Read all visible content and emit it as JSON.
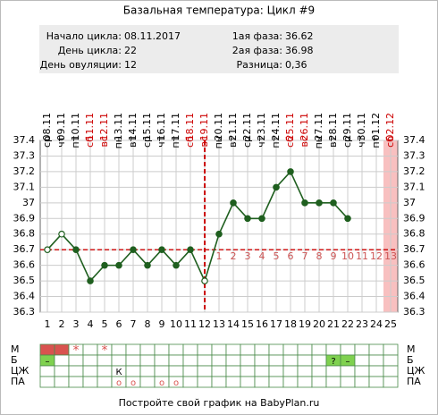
{
  "chart_data": {
    "type": "line",
    "title": "Базальная температура: Цикл #9",
    "info": {
      "left": [
        {
          "label": "Начало цикла:",
          "value": "08.11.2017"
        },
        {
          "label": "День цикла:",
          "value": "22"
        },
        {
          "label": "День овуляции:",
          "value": "12"
        }
      ],
      "right": [
        {
          "label": "1ая фаза:",
          "value": "36.62"
        },
        {
          "label": "2ая фаза:",
          "value": "36.98"
        },
        {
          "label": "Разница:",
          "value": "0,36"
        }
      ]
    },
    "x": [
      1,
      2,
      3,
      4,
      5,
      6,
      7,
      8,
      9,
      10,
      11,
      12,
      13,
      14,
      15,
      16,
      17,
      18,
      19,
      20,
      21,
      22,
      23,
      24,
      25
    ],
    "xlim": [
      0.5,
      25.5
    ],
    "weekdays": [
      "ср",
      "чт",
      "пт",
      "сб",
      "вс",
      "пн",
      "вт",
      "ср",
      "чт",
      "пт",
      "сб",
      "вс",
      "пн",
      "вт",
      "ср",
      "чт",
      "пт",
      "сб",
      "вс",
      "пн",
      "вт",
      "ср",
      "чт",
      "пт",
      "сб"
    ],
    "dates": [
      "08.11",
      "09.11",
      "10.11",
      "11.11",
      "12.11",
      "13.11",
      "14.11",
      "15.11",
      "16.11",
      "17.11",
      "18.11",
      "19.11",
      "20.11",
      "21.11",
      "22.11",
      "23.11",
      "24.11",
      "25.11",
      "26.11",
      "27.11",
      "28.11",
      "29.11",
      "30.11",
      "01.12",
      "02.12"
    ],
    "series": [
      {
        "name": "Температура",
        "color": "#1f5f1f",
        "values": [
          36.7,
          36.8,
          36.7,
          36.5,
          36.6,
          36.6,
          36.7,
          36.6,
          36.7,
          36.6,
          36.7,
          36.5,
          36.8,
          37.0,
          36.9,
          36.9,
          37.1,
          37.2,
          37.0,
          37.0,
          37.0,
          36.9,
          null,
          null,
          null
        ],
        "marker_fills": [
          "#ffffff",
          "#ffffff",
          "#1f5f1f",
          "#1f5f1f",
          "#1f5f1f",
          "#1f5f1f",
          "#1f5f1f",
          "#1f5f1f",
          "#1f5f1f",
          "#1f5f1f",
          "#1f5f1f",
          "#ffffff",
          "#1f5f1f",
          "#1f5f1f",
          "#1f5f1f",
          "#1f5f1f",
          "#1f5f1f",
          "#1f5f1f",
          "#1f5f1f",
          "#1f5f1f",
          "#1f5f1f",
          "#1f5f1f",
          null,
          null,
          null
        ]
      }
    ],
    "ylim": [
      36.3,
      37.4
    ],
    "yticks": [
      36.3,
      36.4,
      36.5,
      36.6,
      36.7,
      36.8,
      36.9,
      37.0,
      37.1,
      37.2,
      37.3,
      37.4
    ],
    "cover_line": 36.7,
    "ovulation_day": 12,
    "highlight_days": [
      25
    ],
    "phase2_days": [
      1,
      2,
      3,
      4,
      5,
      6,
      7,
      8,
      9,
      10,
      11,
      12,
      13
    ],
    "phase2_start": 13,
    "grid": true,
    "table": {
      "rows": [
        {
          "label": "М",
          "cells": [
            null,
            null,
            "*",
            null,
            "*",
            null,
            null,
            null,
            null,
            null,
            null,
            null,
            null,
            null,
            null,
            null,
            null,
            null,
            null,
            null,
            null,
            null,
            null,
            null,
            null
          ],
          "colors": [
            "#d9534f",
            "#d9534f",
            null,
            null,
            null,
            null,
            null,
            null,
            null,
            null,
            null,
            null,
            null,
            null,
            null,
            null,
            null,
            null,
            null,
            null,
            null,
            null,
            null,
            null,
            null
          ]
        },
        {
          "label": "Б",
          "cells": [
            "–",
            null,
            null,
            null,
            null,
            null,
            null,
            null,
            null,
            null,
            null,
            null,
            null,
            null,
            null,
            null,
            null,
            null,
            null,
            null,
            "?",
            "–",
            null,
            null,
            null
          ],
          "colors": [
            "#7fd14f",
            null,
            null,
            null,
            null,
            null,
            null,
            null,
            null,
            null,
            null,
            null,
            null,
            null,
            null,
            null,
            null,
            null,
            null,
            null,
            "#7fd14f",
            "#7fd14f",
            null,
            null,
            null
          ]
        },
        {
          "label": "ЦЖ",
          "cells": [
            null,
            null,
            null,
            null,
            null,
            "К",
            null,
            null,
            null,
            null,
            null,
            null,
            null,
            null,
            null,
            null,
            null,
            null,
            null,
            null,
            null,
            null,
            null,
            null,
            null
          ],
          "colors": [
            null,
            null,
            null,
            null,
            null,
            null,
            null,
            null,
            null,
            null,
            null,
            null,
            null,
            null,
            null,
            null,
            null,
            null,
            null,
            null,
            null,
            null,
            null,
            null,
            null
          ]
        },
        {
          "label": "ПА",
          "cells": [
            null,
            null,
            null,
            null,
            null,
            "о",
            "о",
            null,
            "о",
            "о",
            null,
            null,
            null,
            null,
            null,
            null,
            null,
            null,
            null,
            null,
            null,
            null,
            null,
            null,
            null
          ],
          "colors": [
            null,
            null,
            null,
            null,
            null,
            null,
            null,
            null,
            null,
            null,
            null,
            null,
            null,
            null,
            null,
            null,
            null,
            null,
            null,
            null,
            null,
            null,
            null,
            null,
            null
          ]
        }
      ]
    },
    "footer": "Постройте свой график на BabyPlan.ru"
  }
}
